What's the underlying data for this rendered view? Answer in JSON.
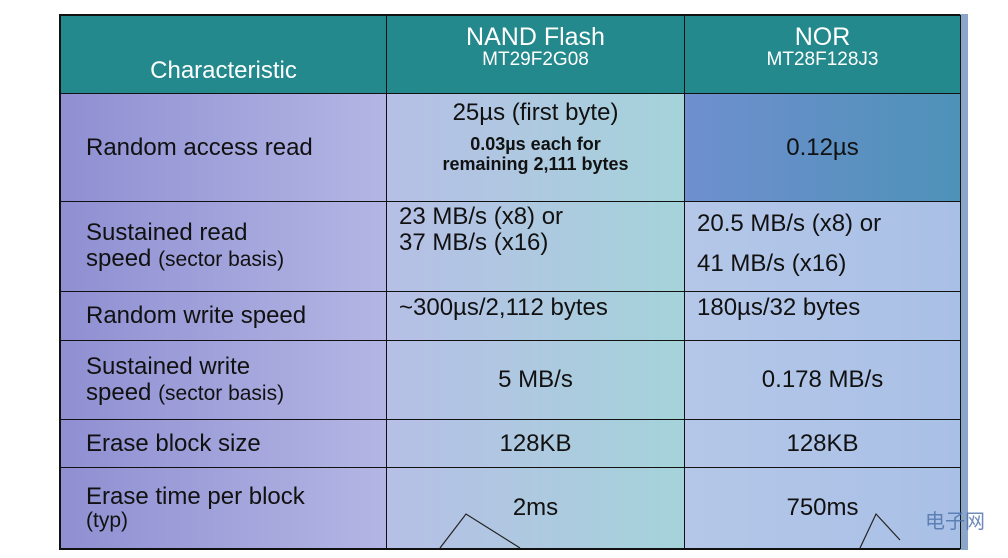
{
  "header": {
    "characteristic": "Characteristic",
    "nand": {
      "name": "NAND Flash",
      "part": "MT29F2G08"
    },
    "nor": {
      "name": "NOR",
      "part": "MT28F128J3"
    }
  },
  "rows": [
    {
      "label": [
        "Random access read"
      ],
      "nand": [
        "25µs (first byte)",
        "0.03µs each for",
        "remaining 2,111 bytes"
      ],
      "nor": [
        "0.12µs"
      ]
    },
    {
      "label": [
        "Sustained read",
        "speed",
        "(sector basis)"
      ],
      "nand": [
        "23 MB/s (x8) or",
        "37 MB/s (x16)"
      ],
      "nor": [
        "20.5 MB/s (x8) or",
        "41 MB/s (x16)"
      ]
    },
    {
      "label": [
        "Random write speed"
      ],
      "nand": [
        "~300µs/2,112 bytes"
      ],
      "nor": [
        "180µs/32 bytes"
      ]
    },
    {
      "label": [
        "Sustained write",
        "speed",
        "(sector basis)"
      ],
      "nand": [
        "5 MB/s"
      ],
      "nor": [
        "0.178 MB/s"
      ]
    },
    {
      "label": [
        "Erase block size"
      ],
      "nand": [
        "128KB"
      ],
      "nor": [
        "128KB"
      ]
    },
    {
      "label": [
        "Erase time per block",
        "(typ)"
      ],
      "nand": [
        "2ms"
      ],
      "nor": [
        "750ms"
      ]
    }
  ],
  "watermark": "电子网"
}
